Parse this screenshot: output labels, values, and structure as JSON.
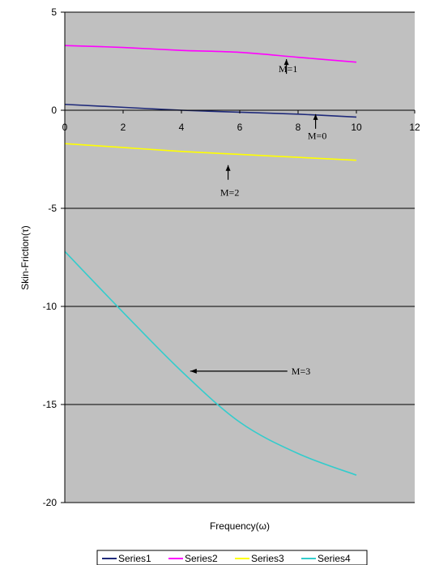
{
  "chart_data": {
    "type": "line",
    "title": "",
    "xlabel": "Frequency(ω)",
    "ylabel": "Skin-Friction(τ)",
    "xlim": [
      0,
      12
    ],
    "ylim": [
      -20,
      5
    ],
    "x_ticks": [
      "0",
      "2",
      "4",
      "6",
      "8",
      "10",
      "12"
    ],
    "y_ticks": [
      "5",
      "0",
      "-5",
      "-10",
      "-15",
      "-20"
    ],
    "grid": "horizontal major lines",
    "plot_background": "#c0c0c0",
    "legend_position": "bottom",
    "x": [
      0,
      2,
      4,
      6,
      8,
      10
    ],
    "series": [
      {
        "name": "Series1",
        "color": "#1f2a7a",
        "values": [
          0.3,
          0.15,
          0.0,
          -0.1,
          -0.2,
          -0.35
        ]
      },
      {
        "name": "Series2",
        "color": "#ff00ff",
        "values": [
          3.3,
          3.2,
          3.05,
          2.95,
          2.7,
          2.45
        ]
      },
      {
        "name": "Series3",
        "color": "#ffff00",
        "values": [
          -1.7,
          -1.9,
          -2.1,
          -2.25,
          -2.4,
          -2.55
        ]
      },
      {
        "name": "Series4",
        "color": "#33cccc",
        "values": [
          -7.2,
          -10.3,
          -13.3,
          -15.9,
          -17.5,
          -18.6
        ]
      }
    ],
    "annotations": [
      {
        "text": "M=1",
        "arrow": "up",
        "x": 7.6,
        "y": 2.6,
        "label_y": 2.1
      },
      {
        "text": "M=0",
        "arrow": "up",
        "x": 8.6,
        "y": -0.2,
        "label_y": -1.3
      },
      {
        "text": "M=2",
        "arrow": "up",
        "x": 5.6,
        "y": -2.8,
        "label_y": -4.2
      },
      {
        "text": "M=3",
        "arrow": "left",
        "x": 4.3,
        "y": -13.3,
        "label_y": -13.3
      }
    ]
  }
}
